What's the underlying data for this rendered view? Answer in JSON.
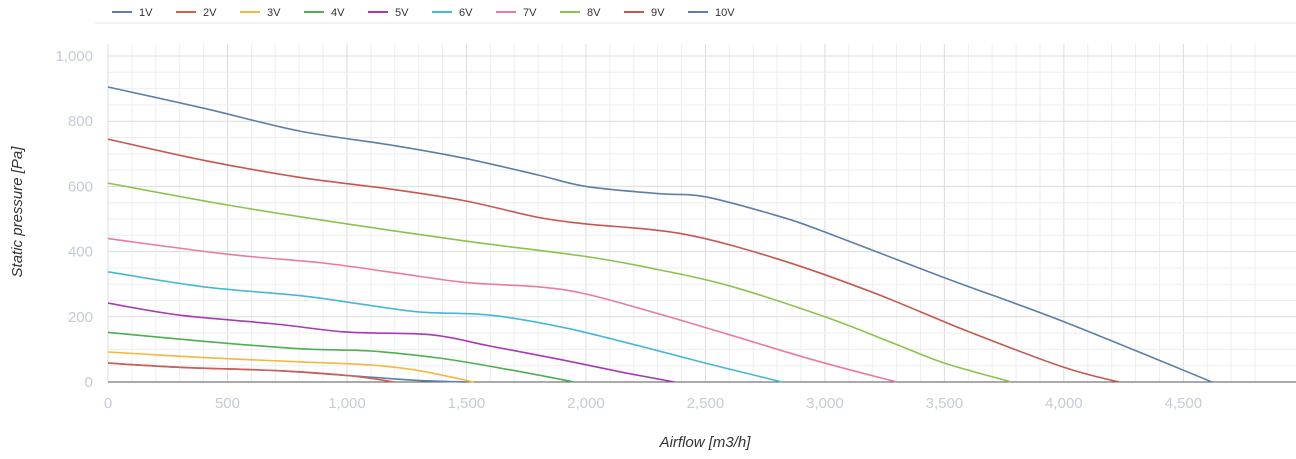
{
  "chart_data": {
    "type": "line",
    "xlabel": "Airflow [m3/h]",
    "ylabel": "Static pressure [Pa]",
    "xlim": [
      0,
      4850
    ],
    "ylim": [
      0,
      1000
    ],
    "x_ticks": [
      "0",
      "500",
      "1,000",
      "1,500",
      "2,000",
      "2,500",
      "3,000",
      "3,500",
      "4,000",
      "4,500"
    ],
    "x_tick_values": [
      0,
      500,
      1000,
      1500,
      2000,
      2500,
      3000,
      3500,
      4000,
      4500
    ],
    "y_ticks": [
      "0",
      "200",
      "400",
      "600",
      "800",
      "1,000"
    ],
    "y_tick_values": [
      0,
      200,
      400,
      600,
      800,
      1000
    ],
    "grid": true,
    "legend_position": "top-left",
    "series": [
      {
        "name": "1V",
        "color": "#5b7fa8",
        "x": [
          0,
          300,
          700,
          1000,
          1300,
          1500,
          1700,
          2000,
          2300,
          2600,
          3000,
          3500,
          4000,
          4600
        ],
        "y": [
          58,
          45,
          35,
          20,
          5,
          0,
          0,
          0,
          0,
          0,
          0,
          0,
          0,
          0
        ]
      },
      {
        "name": "2V",
        "color": "#d45c52",
        "x": [
          0,
          300,
          700,
          1000,
          1200
        ],
        "y": [
          58,
          45,
          35,
          20,
          0
        ]
      },
      {
        "name": "3V",
        "color": "#f4b740",
        "x": [
          0,
          400,
          800,
          1100,
          1300,
          1530
        ],
        "y": [
          92,
          75,
          62,
          52,
          35,
          0
        ]
      },
      {
        "name": "4V",
        "color": "#4caf50",
        "x": [
          0,
          400,
          800,
          1100,
          1400,
          1700,
          1950
        ],
        "y": [
          152,
          125,
          102,
          95,
          72,
          35,
          0
        ]
      },
      {
        "name": "5V",
        "color": "#a63bb5",
        "x": [
          0,
          300,
          700,
          1000,
          1350,
          1600,
          1900,
          2150,
          2370
        ],
        "y": [
          242,
          205,
          178,
          153,
          145,
          110,
          68,
          30,
          0
        ]
      },
      {
        "name": "6V",
        "color": "#44b8d6",
        "x": [
          0,
          400,
          800,
          1050,
          1300,
          1600,
          1900,
          2200,
          2500,
          2820
        ],
        "y": [
          338,
          292,
          265,
          240,
          215,
          205,
          168,
          115,
          58,
          0
        ]
      },
      {
        "name": "7V",
        "color": "#e97aa7",
        "x": [
          0,
          500,
          900,
          1200,
          1500,
          1800,
          2000,
          2300,
          2600,
          2950,
          3300
        ],
        "y": [
          440,
          392,
          365,
          335,
          305,
          292,
          270,
          210,
          145,
          68,
          0
        ]
      },
      {
        "name": "8V",
        "color": "#8bc34a",
        "x": [
          0,
          500,
          1000,
          1500,
          2000,
          2300,
          2600,
          3000,
          3300,
          3500,
          3780
        ],
        "y": [
          610,
          543,
          485,
          432,
          385,
          345,
          295,
          200,
          115,
          58,
          0
        ]
      },
      {
        "name": "9V",
        "color": "#c9564e",
        "x": [
          0,
          400,
          800,
          1200,
          1500,
          1800,
          2000,
          2400,
          2800,
          3200,
          3600,
          4000,
          4230
        ],
        "y": [
          745,
          680,
          628,
          590,
          555,
          505,
          485,
          455,
          378,
          275,
          155,
          45,
          0
        ]
      },
      {
        "name": "10V",
        "color": "#5b7fa8",
        "x": [
          0,
          400,
          800,
          1200,
          1500,
          1800,
          2000,
          2300,
          2500,
          2800,
          3000,
          3500,
          4000,
          4620
        ],
        "y": [
          905,
          840,
          770,
          725,
          685,
          635,
          600,
          578,
          568,
          510,
          460,
          320,
          185,
          0
        ]
      }
    ]
  }
}
